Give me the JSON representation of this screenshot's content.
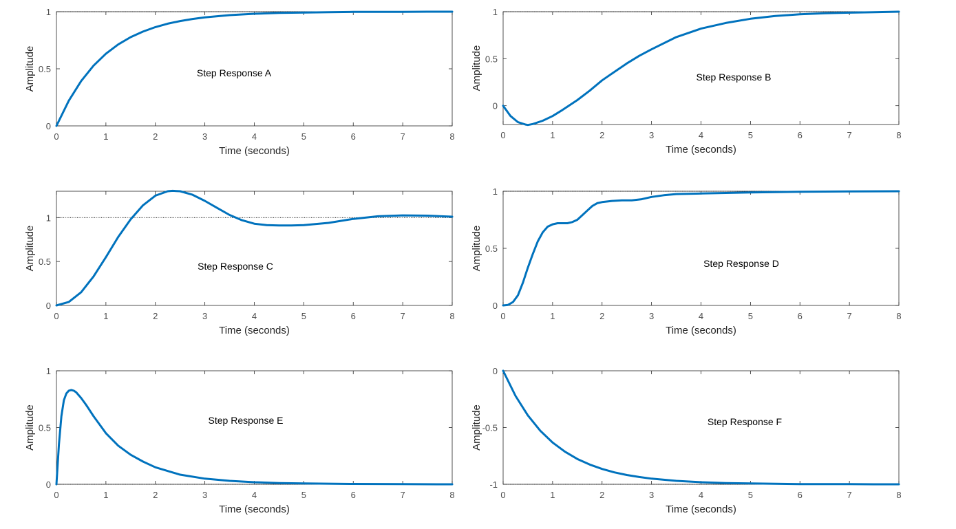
{
  "colors": {
    "line": "#0072BD",
    "axes": "#262626",
    "ticks": "#4d4d4d",
    "reference": "#000000"
  },
  "chart_data": [
    {
      "type": "line",
      "title": "",
      "xlabel": "Time (seconds)",
      "ylabel": "Amplitude",
      "xlim": [
        0,
        8
      ],
      "ylim": [
        0,
        1
      ],
      "xticks": [
        0,
        1,
        2,
        3,
        4,
        5,
        6,
        7,
        8
      ],
      "yticks": [
        0,
        0.5,
        1
      ],
      "xtick_labels": [
        "0",
        "1",
        "2",
        "3",
        "4",
        "5",
        "6",
        "7",
        "8"
      ],
      "ytick_labels": [
        "0",
        "0.5",
        "1"
      ],
      "annotation": "Step Response A",
      "reference_line": 1,
      "grid": false,
      "series": [
        {
          "x": [
            0,
            0.25,
            0.5,
            0.75,
            1,
            1.25,
            1.5,
            1.75,
            2,
            2.25,
            2.5,
            2.75,
            3,
            3.5,
            4,
            4.5,
            5,
            5.5,
            6,
            6.5,
            7,
            7.5,
            8
          ],
          "y": [
            0,
            0.221,
            0.393,
            0.528,
            0.632,
            0.713,
            0.777,
            0.826,
            0.865,
            0.895,
            0.918,
            0.936,
            0.95,
            0.97,
            0.982,
            0.989,
            0.993,
            0.996,
            0.998,
            0.998,
            0.999,
            1.0,
            1.0
          ]
        }
      ]
    },
    {
      "type": "line",
      "title": "",
      "xlabel": "Time (seconds)",
      "ylabel": "Amplitude",
      "xlim": [
        0,
        8
      ],
      "ylim": [
        -0.2,
        1
      ],
      "xticks": [
        0,
        1,
        2,
        3,
        4,
        5,
        6,
        7,
        8
      ],
      "yticks": [
        0,
        0.5,
        1
      ],
      "xtick_labels": [
        "0",
        "1",
        "2",
        "3",
        "4",
        "5",
        "6",
        "7",
        "8"
      ],
      "ytick_labels": [
        "0",
        "0.5",
        "1"
      ],
      "annotation": "Step Response B",
      "reference_line": 1,
      "grid": false,
      "series": [
        {
          "x": [
            0,
            0.15,
            0.3,
            0.45,
            0.5,
            0.6,
            0.8,
            1,
            1.2,
            1.5,
            1.75,
            2,
            2.25,
            2.5,
            2.75,
            3,
            3.5,
            4,
            4.5,
            5,
            5.5,
            6,
            6.5,
            7,
            7.5,
            8
          ],
          "y": [
            0,
            -0.11,
            -0.175,
            -0.2,
            -0.205,
            -0.195,
            -0.16,
            -0.11,
            -0.045,
            0.06,
            0.16,
            0.27,
            0.36,
            0.45,
            0.53,
            0.6,
            0.73,
            0.82,
            0.88,
            0.925,
            0.955,
            0.972,
            0.983,
            0.99,
            0.995,
            1.0
          ]
        }
      ]
    },
    {
      "type": "line",
      "title": "",
      "xlabel": "Time (seconds)",
      "ylabel": "Amplitude",
      "xlim": [
        0,
        8
      ],
      "ylim": [
        0,
        1.3
      ],
      "xticks": [
        0,
        1,
        2,
        3,
        4,
        5,
        6,
        7,
        8
      ],
      "yticks": [
        0,
        0.5,
        1
      ],
      "xtick_labels": [
        "0",
        "1",
        "2",
        "3",
        "4",
        "5",
        "6",
        "7",
        "8"
      ],
      "ytick_labels": [
        "0",
        "0.5",
        "1"
      ],
      "annotation": "Step Response C",
      "reference_line": 1,
      "grid": false,
      "series": [
        {
          "x": [
            0,
            0.25,
            0.5,
            0.75,
            1,
            1.25,
            1.5,
            1.75,
            2,
            2.25,
            2.35,
            2.5,
            2.75,
            3,
            3.25,
            3.5,
            3.75,
            4,
            4.25,
            4.5,
            4.75,
            5,
            5.5,
            6,
            6.5,
            7,
            7.5,
            8
          ],
          "y": [
            0,
            0.04,
            0.15,
            0.33,
            0.55,
            0.78,
            0.98,
            1.14,
            1.25,
            1.3,
            1.305,
            1.3,
            1.26,
            1.19,
            1.11,
            1.03,
            0.97,
            0.93,
            0.915,
            0.91,
            0.91,
            0.915,
            0.94,
            0.985,
            1.015,
            1.025,
            1.022,
            1.01
          ]
        }
      ]
    },
    {
      "type": "line",
      "title": "",
      "xlabel": "Time (seconds)",
      "ylabel": "Amplitude",
      "xlim": [
        0,
        8
      ],
      "ylim": [
        0,
        1
      ],
      "xticks": [
        0,
        1,
        2,
        3,
        4,
        5,
        6,
        7,
        8
      ],
      "yticks": [
        0,
        0.5,
        1
      ],
      "xtick_labels": [
        "0",
        "1",
        "2",
        "3",
        "4",
        "5",
        "6",
        "7",
        "8"
      ],
      "ytick_labels": [
        "0",
        "0.5",
        "1"
      ],
      "annotation": "Step Response D",
      "reference_line": 1,
      "grid": false,
      "series": [
        {
          "x": [
            0,
            0.1,
            0.2,
            0.3,
            0.4,
            0.5,
            0.6,
            0.7,
            0.8,
            0.9,
            1,
            1.1,
            1.2,
            1.3,
            1.4,
            1.5,
            1.6,
            1.7,
            1.8,
            1.9,
            2,
            2.2,
            2.4,
            2.6,
            2.8,
            3,
            3.25,
            3.5,
            4,
            4.5,
            5,
            5.5,
            6,
            7,
            8
          ],
          "y": [
            0,
            0.005,
            0.03,
            0.09,
            0.2,
            0.33,
            0.45,
            0.56,
            0.64,
            0.69,
            0.71,
            0.72,
            0.72,
            0.72,
            0.73,
            0.75,
            0.79,
            0.83,
            0.87,
            0.895,
            0.905,
            0.915,
            0.92,
            0.92,
            0.93,
            0.95,
            0.965,
            0.975,
            0.98,
            0.985,
            0.99,
            0.993,
            0.995,
            0.998,
            1.0
          ]
        }
      ]
    },
    {
      "type": "line",
      "title": "",
      "xlabel": "Time (seconds)",
      "ylabel": "Amplitude",
      "xlim": [
        0,
        8
      ],
      "ylim": [
        0,
        1
      ],
      "xticks": [
        0,
        1,
        2,
        3,
        4,
        5,
        6,
        7,
        8
      ],
      "yticks": [
        0,
        0.5,
        1
      ],
      "xtick_labels": [
        "0",
        "1",
        "2",
        "3",
        "4",
        "5",
        "6",
        "7",
        "8"
      ],
      "ytick_labels": [
        "0",
        "0.5",
        "1"
      ],
      "annotation": "Step Response E",
      "reference_line": 0,
      "grid": false,
      "series": [
        {
          "x": [
            0,
            0.05,
            0.1,
            0.15,
            0.2,
            0.25,
            0.3,
            0.35,
            0.4,
            0.5,
            0.6,
            0.75,
            1,
            1.25,
            1.5,
            1.75,
            2,
            2.5,
            3,
            3.5,
            4,
            4.5,
            5,
            6,
            7,
            8
          ],
          "y": [
            0,
            0.35,
            0.6,
            0.74,
            0.8,
            0.825,
            0.83,
            0.825,
            0.81,
            0.76,
            0.7,
            0.6,
            0.45,
            0.34,
            0.26,
            0.2,
            0.15,
            0.085,
            0.05,
            0.03,
            0.018,
            0.011,
            0.007,
            0.003,
            0.001,
            0.0
          ]
        }
      ]
    },
    {
      "type": "line",
      "title": "",
      "xlabel": "Time (seconds)",
      "ylabel": "Amplitude",
      "xlim": [
        0,
        8
      ],
      "ylim": [
        -1,
        0
      ],
      "xticks": [
        0,
        1,
        2,
        3,
        4,
        5,
        6,
        7,
        8
      ],
      "yticks": [
        -1,
        -0.5,
        0
      ],
      "xtick_labels": [
        "0",
        "1",
        "2",
        "3",
        "4",
        "5",
        "6",
        "7",
        "8"
      ],
      "ytick_labels": [
        "-1",
        "-0.5",
        "0"
      ],
      "annotation": "Step Response F",
      "reference_line": -1,
      "grid": false,
      "series": [
        {
          "x": [
            0,
            0.25,
            0.5,
            0.75,
            1,
            1.25,
            1.5,
            1.75,
            2,
            2.25,
            2.5,
            2.75,
            3,
            3.5,
            4,
            4.5,
            5,
            5.5,
            6,
            6.5,
            7,
            7.5,
            8
          ],
          "y": [
            0,
            -0.221,
            -0.393,
            -0.528,
            -0.632,
            -0.713,
            -0.777,
            -0.826,
            -0.865,
            -0.895,
            -0.918,
            -0.936,
            -0.95,
            -0.97,
            -0.982,
            -0.989,
            -0.993,
            -0.996,
            -0.998,
            -0.998,
            -0.999,
            -1.0,
            -1.0
          ]
        }
      ]
    }
  ]
}
